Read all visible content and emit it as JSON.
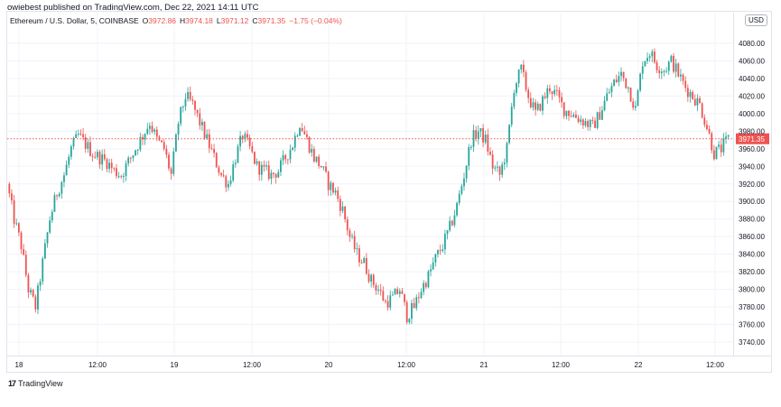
{
  "header": {
    "note": "owiebest published on TradingView.com, Dec 22, 2021 14:11 UTC"
  },
  "legend": {
    "symbol": "Ethereum / U.S. Dollar, 5, COINBASE",
    "o_label": "O",
    "o_value": "3972.86",
    "h_label": "H",
    "h_value": "3974.18",
    "l_label": "L",
    "l_value": "3971.12",
    "c_label": "C",
    "c_value": "3971.35",
    "change": "−1.75 (−0.04%)"
  },
  "currency_label": "USD",
  "footer": {
    "brand_text": "TradingView",
    "brand_logo": "17"
  },
  "colors": {
    "up": "#26a69a",
    "down": "#ef5350",
    "grid": "#f0f3fa",
    "price_line": "#ef5350"
  },
  "chart_data": {
    "type": "candlestick",
    "symbol": "ETH/USD",
    "interval": "5",
    "exchange": "COINBASE",
    "ylim": [
      3730,
      4100
    ],
    "y_ticks": [
      "4080.00",
      "4060.00",
      "4040.00",
      "4020.00",
      "4000.00",
      "3980.00",
      "3960.00",
      "3940.00",
      "3920.00",
      "3900.00",
      "3880.00",
      "3860.00",
      "3840.00",
      "3820.00",
      "3800.00",
      "3780.00",
      "3760.00",
      "3740.00"
    ],
    "x_ticks": [
      "18",
      "12:00",
      "19",
      "12:00",
      "20",
      "12:00",
      "21",
      "12:00",
      "22",
      "12:00"
    ],
    "last_price": 3971.35,
    "last_price_label": "3971.35",
    "grid": true,
    "price_path_hourly": [
      3920,
      3880,
      3850,
      3800,
      3780,
      3830,
      3880,
      3910,
      3930,
      3960,
      3975,
      3965,
      3955,
      3950,
      3945,
      3935,
      3930,
      3945,
      3960,
      3975,
      3990,
      3970,
      3960,
      3930,
      3990,
      4020,
      4010,
      3990,
      3970,
      3950,
      3930,
      3920,
      3950,
      3975,
      3960,
      3940,
      3935,
      3930,
      3935,
      3950,
      3965,
      3990,
      3970,
      3950,
      3940,
      3920,
      3910,
      3890,
      3860,
      3840,
      3830,
      3810,
      3800,
      3785,
      3790,
      3800,
      3770,
      3780,
      3800,
      3815,
      3835,
      3850,
      3870,
      3895,
      3930,
      3970,
      3980,
      3970,
      3940,
      3930,
      3960,
      4030,
      4050,
      4020,
      4000,
      4015,
      4030,
      4020,
      4005,
      4000,
      3995,
      3990,
      3985,
      4000,
      4020,
      4035,
      4045,
      4030,
      4005,
      4060,
      4070,
      4055,
      4050,
      4060,
      4045,
      4030,
      4020,
      4010,
      3985,
      3955,
      3960,
      3971
    ]
  }
}
